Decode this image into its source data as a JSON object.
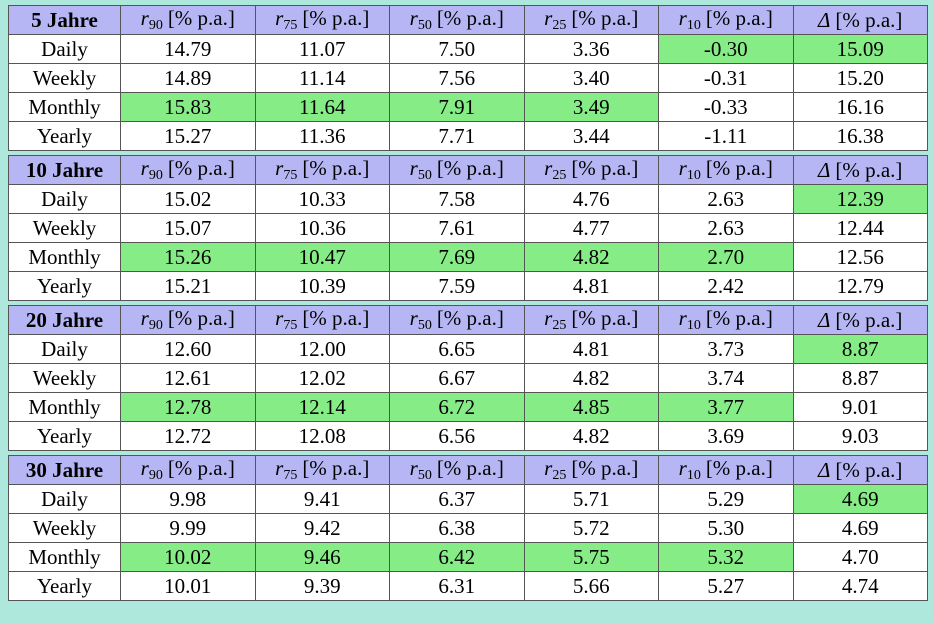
{
  "blocks": [
    {
      "title": "5 Jahre",
      "headers": [
        {
          "symbol": "r",
          "sub": "90",
          "unit": "[% p.a.]"
        },
        {
          "symbol": "r",
          "sub": "75",
          "unit": "[% p.a.]"
        },
        {
          "symbol": "r",
          "sub": "50",
          "unit": "[% p.a.]"
        },
        {
          "symbol": "r",
          "sub": "25",
          "unit": "[% p.a.]"
        },
        {
          "symbol": "r",
          "sub": "10",
          "unit": "[% p.a.]"
        },
        {
          "symbol": "Δ",
          "unit": "[% p.a.]"
        }
      ],
      "rows": [
        {
          "label": "Daily",
          "values": [
            "14.79",
            "11.07",
            "7.50",
            "3.36",
            "-0.30",
            "15.09"
          ],
          "highlight": [
            4,
            5
          ]
        },
        {
          "label": "Weekly",
          "values": [
            "14.89",
            "11.14",
            "7.56",
            "3.40",
            "-0.31",
            "15.20"
          ],
          "highlight": []
        },
        {
          "label": "Monthly",
          "values": [
            "15.83",
            "11.64",
            "7.91",
            "3.49",
            "-0.33",
            "16.16"
          ],
          "highlight": [
            0,
            1,
            2,
            3
          ]
        },
        {
          "label": "Yearly",
          "values": [
            "15.27",
            "11.36",
            "7.71",
            "3.44",
            "-1.11",
            "16.38"
          ],
          "highlight": []
        }
      ]
    },
    {
      "title": "10 Jahre",
      "headers": [
        {
          "symbol": "r",
          "sub": "90",
          "unit": "[% p.a.]"
        },
        {
          "symbol": "r",
          "sub": "75",
          "unit": "[% p.a.]"
        },
        {
          "symbol": "r",
          "sub": "50",
          "unit": "[% p.a.]"
        },
        {
          "symbol": "r",
          "sub": "25",
          "unit": "[% p.a.]"
        },
        {
          "symbol": "r",
          "sub": "10",
          "unit": "[% p.a.]"
        },
        {
          "symbol": "Δ",
          "unit": "[% p.a.]"
        }
      ],
      "rows": [
        {
          "label": "Daily",
          "values": [
            "15.02",
            "10.33",
            "7.58",
            "4.76",
            "2.63",
            "12.39"
          ],
          "highlight": [
            5
          ]
        },
        {
          "label": "Weekly",
          "values": [
            "15.07",
            "10.36",
            "7.61",
            "4.77",
            "2.63",
            "12.44"
          ],
          "highlight": []
        },
        {
          "label": "Monthly",
          "values": [
            "15.26",
            "10.47",
            "7.69",
            "4.82",
            "2.70",
            "12.56"
          ],
          "highlight": [
            0,
            1,
            2,
            3,
            4
          ]
        },
        {
          "label": "Yearly",
          "values": [
            "15.21",
            "10.39",
            "7.59",
            "4.81",
            "2.42",
            "12.79"
          ],
          "highlight": []
        }
      ]
    },
    {
      "title": "20 Jahre",
      "headers": [
        {
          "symbol": "r",
          "sub": "90",
          "unit": "[% p.a.]"
        },
        {
          "symbol": "r",
          "sub": "75",
          "unit": "[% p.a.]"
        },
        {
          "symbol": "r",
          "sub": "50",
          "unit": "[% p.a.]"
        },
        {
          "symbol": "r",
          "sub": "25",
          "unit": "[% p.a.]"
        },
        {
          "symbol": "r",
          "sub": "10",
          "unit": "[% p.a.]"
        },
        {
          "symbol": "Δ",
          "unit": "[% p.a.]"
        }
      ],
      "rows": [
        {
          "label": "Daily",
          "values": [
            "12.60",
            "12.00",
            "6.65",
            "4.81",
            "3.73",
            "8.87"
          ],
          "highlight": [
            5
          ]
        },
        {
          "label": "Weekly",
          "values": [
            "12.61",
            "12.02",
            "6.67",
            "4.82",
            "3.74",
            "8.87"
          ],
          "highlight": []
        },
        {
          "label": "Monthly",
          "values": [
            "12.78",
            "12.14",
            "6.72",
            "4.85",
            "3.77",
            "9.01"
          ],
          "highlight": [
            0,
            1,
            2,
            3,
            4
          ]
        },
        {
          "label": "Yearly",
          "values": [
            "12.72",
            "12.08",
            "6.56",
            "4.82",
            "3.69",
            "9.03"
          ],
          "highlight": []
        }
      ]
    },
    {
      "title": "30 Jahre",
      "headers": [
        {
          "symbol": "r",
          "sub": "90",
          "unit": "[% p.a.]"
        },
        {
          "symbol": "r",
          "sub": "75",
          "unit": "[% p.a.]"
        },
        {
          "symbol": "r",
          "sub": "50",
          "unit": "[% p.a.]"
        },
        {
          "symbol": "r",
          "sub": "25",
          "unit": "[% p.a.]"
        },
        {
          "symbol": "r",
          "sub": "10",
          "unit": "[% p.a.]"
        },
        {
          "symbol": "Δ",
          "unit": "[% p.a.]"
        }
      ],
      "rows": [
        {
          "label": "Daily",
          "values": [
            "9.98",
            "9.41",
            "6.37",
            "5.71",
            "5.29",
            "4.69"
          ],
          "highlight": [
            5
          ]
        },
        {
          "label": "Weekly",
          "values": [
            "9.99",
            "9.42",
            "6.38",
            "5.72",
            "5.30",
            "4.69"
          ],
          "highlight": []
        },
        {
          "label": "Monthly",
          "values": [
            "10.02",
            "9.46",
            "6.42",
            "5.75",
            "5.32",
            "4.70"
          ],
          "highlight": [
            0,
            1,
            2,
            3,
            4
          ]
        },
        {
          "label": "Yearly",
          "values": [
            "10.01",
            "9.39",
            "6.31",
            "5.66",
            "5.27",
            "4.74"
          ],
          "highlight": []
        }
      ]
    }
  ]
}
